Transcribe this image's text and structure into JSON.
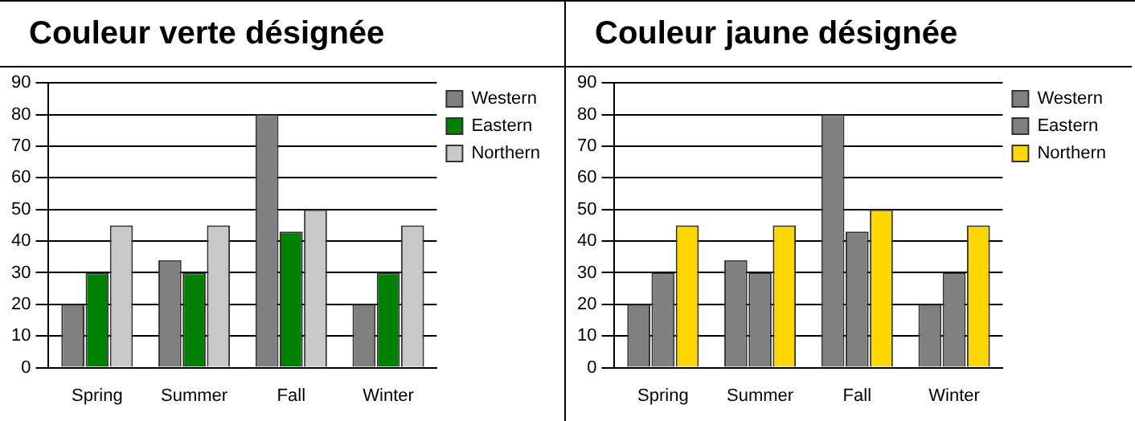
{
  "chart_data": [
    {
      "type": "bar",
      "title": "Couleur verte désignée",
      "categories": [
        "Spring",
        "Summer",
        "Fall",
        "Winter"
      ],
      "series": [
        {
          "name": "Western",
          "color": "#808080",
          "values": [
            20,
            34,
            80,
            20
          ]
        },
        {
          "name": "Eastern",
          "color": "#008000",
          "values": [
            30,
            30,
            43,
            30
          ]
        },
        {
          "name": "Northern",
          "color": "#c8c8c8",
          "values": [
            45,
            45,
            50,
            45
          ]
        }
      ],
      "ylim": [
        0,
        90
      ],
      "yticks": [
        0,
        10,
        20,
        30,
        40,
        50,
        60,
        70,
        80,
        90
      ],
      "grid": "y",
      "legend": "top right"
    },
    {
      "type": "bar",
      "title": "Couleur jaune désignée",
      "categories": [
        "Spring",
        "Summer",
        "Fall",
        "Winter"
      ],
      "series": [
        {
          "name": "Western",
          "color": "#808080",
          "values": [
            20,
            34,
            80,
            20
          ]
        },
        {
          "name": "Eastern",
          "color": "#808080",
          "values": [
            30,
            30,
            43,
            30
          ]
        },
        {
          "name": "Northern",
          "color": "#ffd700",
          "values": [
            45,
            45,
            50,
            45
          ]
        }
      ],
      "ylim": [
        0,
        90
      ],
      "yticks": [
        0,
        10,
        20,
        30,
        40,
        50,
        60,
        70,
        80,
        90
      ],
      "grid": "y",
      "legend": "top right"
    }
  ]
}
